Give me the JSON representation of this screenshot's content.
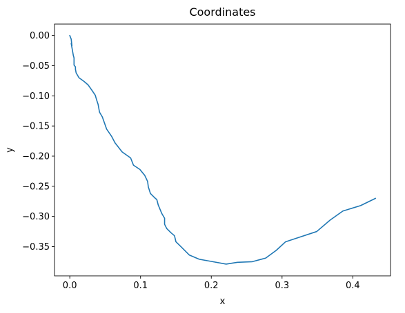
{
  "chart_data": {
    "type": "line",
    "title": "Coordinates",
    "xlabel": "x",
    "ylabel": "y",
    "xlim": [
      -0.0216,
      0.4533
    ],
    "ylim": [
      -0.3985,
      0.019
    ],
    "grid": false,
    "xticks": [
      0.0,
      0.1,
      0.2,
      0.3,
      0.4
    ],
    "xtick_labels": [
      "0.0",
      "0.1",
      "0.2",
      "0.3",
      "0.4"
    ],
    "yticks": [
      0.0,
      -0.05,
      -0.1,
      -0.15,
      -0.2,
      -0.25,
      -0.3,
      -0.35
    ],
    "ytick_labels": [
      "0.00",
      "−0.05",
      "−0.10",
      "−0.15",
      "−0.20",
      "−0.25",
      "−0.30",
      "−0.35"
    ],
    "series": [
      {
        "color": "#1f77b4",
        "x": [
          0.0,
          0.002,
          0.003,
          0.002,
          0.005,
          0.006,
          0.006,
          0.008,
          0.008,
          0.009,
          0.011,
          0.013,
          0.02,
          0.026,
          0.032,
          0.036,
          0.038,
          0.04,
          0.042,
          0.046,
          0.052,
          0.059,
          0.064,
          0.074,
          0.086,
          0.09,
          0.099,
          0.106,
          0.11,
          0.111,
          0.114,
          0.12,
          0.123,
          0.125,
          0.13,
          0.134,
          0.134,
          0.137,
          0.143,
          0.148,
          0.15,
          0.157,
          0.169,
          0.183,
          0.202,
          0.221,
          0.237,
          0.258,
          0.277,
          0.292,
          0.305,
          0.323,
          0.349,
          0.368,
          0.386,
          0.411,
          0.432
        ],
        "y": [
          0.0,
          -0.006,
          -0.017,
          -0.013,
          -0.033,
          -0.037,
          -0.049,
          -0.052,
          -0.056,
          -0.062,
          -0.066,
          -0.07,
          -0.076,
          -0.082,
          -0.092,
          -0.099,
          -0.107,
          -0.114,
          -0.127,
          -0.135,
          -0.155,
          -0.167,
          -0.178,
          -0.193,
          -0.203,
          -0.215,
          -0.222,
          -0.232,
          -0.242,
          -0.251,
          -0.262,
          -0.269,
          -0.272,
          -0.281,
          -0.295,
          -0.303,
          -0.313,
          -0.32,
          -0.327,
          -0.332,
          -0.342,
          -0.35,
          -0.364,
          -0.371,
          -0.375,
          -0.379,
          -0.376,
          -0.375,
          -0.369,
          -0.356,
          -0.342,
          -0.335,
          -0.325,
          -0.306,
          -0.291,
          -0.282,
          -0.27
        ]
      }
    ]
  }
}
